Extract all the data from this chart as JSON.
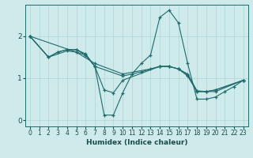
{
  "xlabel": "Humidex (Indice chaleur)",
  "ylabel": "",
  "bg_color": "#ceeaea",
  "grid_color": "#aed4d4",
  "line_color": "#1e6b6b",
  "xlim": [
    -0.5,
    23.5
  ],
  "ylim": [
    -0.15,
    2.75
  ],
  "yticks": [
    0,
    1,
    2
  ],
  "xticks": [
    0,
    1,
    2,
    3,
    4,
    5,
    6,
    7,
    8,
    9,
    10,
    11,
    12,
    13,
    14,
    15,
    16,
    17,
    18,
    19,
    20,
    21,
    22,
    23
  ],
  "series": [
    {
      "x": [
        0,
        2,
        3,
        4,
        5,
        6,
        7,
        8,
        9,
        10,
        11,
        12,
        13,
        14,
        15,
        16,
        17,
        18,
        19,
        20,
        21,
        22,
        23
      ],
      "y": [
        2.0,
        1.5,
        1.62,
        1.68,
        1.68,
        1.58,
        1.28,
        0.12,
        0.12,
        0.65,
        1.1,
        1.35,
        1.55,
        2.45,
        2.62,
        2.32,
        1.35,
        0.5,
        0.5,
        0.55,
        0.68,
        0.8,
        0.95
      ]
    },
    {
      "x": [
        0,
        5,
        7,
        10,
        13,
        14,
        15,
        16,
        17,
        18,
        19,
        20,
        23
      ],
      "y": [
        2.0,
        1.62,
        1.35,
        1.1,
        1.22,
        1.28,
        1.28,
        1.22,
        1.1,
        0.7,
        0.68,
        0.68,
        0.95
      ]
    },
    {
      "x": [
        0,
        2,
        4,
        5,
        6,
        7,
        10,
        12,
        14,
        15,
        16,
        17,
        18,
        19,
        20,
        23
      ],
      "y": [
        2.0,
        1.5,
        1.65,
        1.62,
        1.55,
        1.28,
        1.05,
        1.15,
        1.28,
        1.28,
        1.22,
        1.08,
        0.68,
        0.68,
        0.72,
        0.95
      ]
    },
    {
      "x": [
        0,
        2,
        3,
        4,
        5,
        6,
        7,
        8,
        9,
        10,
        14,
        15,
        16,
        17,
        18,
        19,
        20,
        23
      ],
      "y": [
        2.0,
        1.5,
        1.62,
        1.68,
        1.68,
        1.55,
        1.28,
        0.72,
        0.65,
        0.95,
        1.28,
        1.28,
        1.22,
        1.05,
        0.68,
        0.68,
        0.72,
        0.95
      ]
    }
  ]
}
